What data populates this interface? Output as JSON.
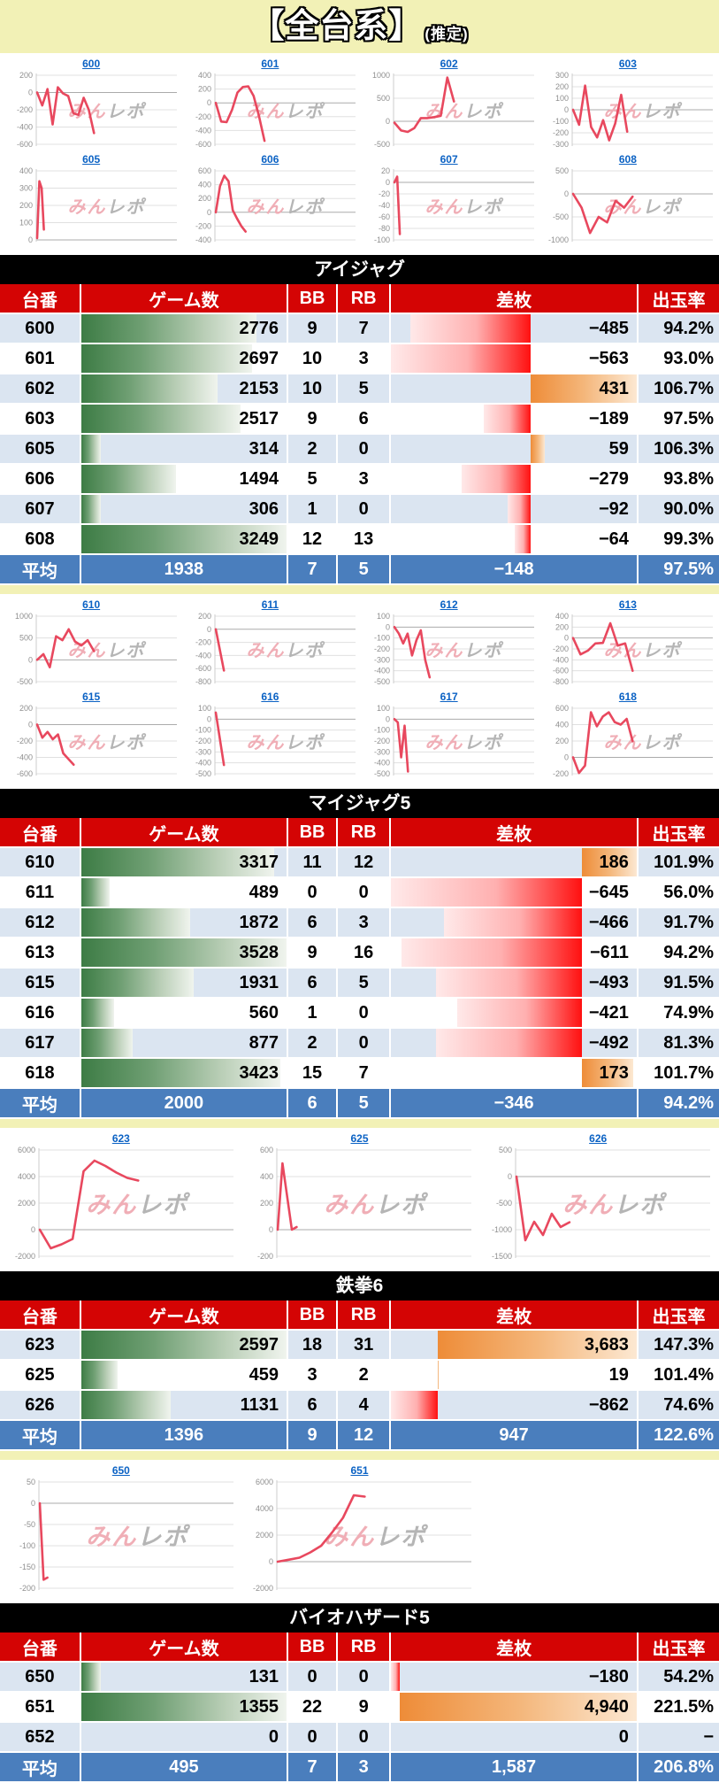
{
  "page": {
    "title": "【全台系】",
    "subtitle": "(推定)"
  },
  "watermark": {
    "part1": "みん",
    "part2": "レポ"
  },
  "columns": {
    "dai": "台番",
    "games": "ゲーム数",
    "bb": "BB",
    "rb": "RB",
    "diff": "差枚",
    "rate": "出玉率"
  },
  "avg_label": "平均",
  "colors": {
    "page_bg": "#f2f1b6",
    "header_red": "#d40404",
    "row_alt_blue": "#dbe5f1",
    "avg_row_blue": "#4a7ebd",
    "section_bar_black": "#000000",
    "chart_line_pink": "#e8485e",
    "link_blue": "#0b62c4",
    "games_bar_green": "#3d7c45",
    "diff_bar_red": "#ff1010",
    "diff_bar_orange": "#ee8c38"
  },
  "sections": [
    {
      "title": "アイジャグ",
      "grid_cols": 4,
      "charts": [
        {
          "label": "600",
          "yticks": [
            200,
            0,
            -200,
            -400,
            -600
          ],
          "span": 0.42,
          "values": [
            0,
            -150,
            40,
            -370,
            60,
            -10,
            -40,
            -240,
            -260,
            -60,
            -200,
            -470
          ]
        },
        {
          "label": "601",
          "yticks": [
            400,
            200,
            0,
            -200,
            -400,
            -600
          ],
          "span": 0.36,
          "values": [
            0,
            -270,
            -280,
            -100,
            150,
            230,
            240,
            100,
            -200,
            -550
          ]
        },
        {
          "label": "602",
          "yticks": [
            1000,
            500,
            0,
            -500
          ],
          "span": 0.44,
          "values": [
            -30,
            -200,
            -230,
            -150,
            70,
            70,
            90,
            120,
            950,
            430
          ]
        },
        {
          "label": "603",
          "yticks": [
            300,
            200,
            100,
            0,
            -100,
            -200,
            -300
          ],
          "span": 0.4,
          "values": [
            0,
            -130,
            210,
            -150,
            -240,
            -90,
            -265,
            -120,
            130,
            -190
          ]
        },
        {
          "label": "605",
          "yticks": [
            400,
            300,
            200,
            100,
            0
          ],
          "span": 0.05,
          "values": [
            10,
            340,
            300,
            60
          ]
        },
        {
          "label": "606",
          "yticks": [
            600,
            400,
            200,
            0,
            -200,
            -400
          ],
          "span": 0.22,
          "values": [
            0,
            380,
            530,
            450,
            30,
            -90,
            -200,
            -280
          ]
        },
        {
          "label": "607",
          "yticks": [
            20,
            0,
            -20,
            -40,
            -60,
            -80,
            -100
          ],
          "span": 0.04,
          "values": [
            0,
            10,
            -90
          ]
        },
        {
          "label": "608",
          "yticks": [
            500,
            0,
            -500,
            -1000
          ],
          "span": 0.44,
          "values": [
            0,
            -300,
            -850,
            -500,
            -620,
            -150,
            -300,
            -60
          ]
        }
      ],
      "rows": [
        {
          "dai": "600",
          "games": "2776",
          "g": 2776,
          "bb": "9",
          "rb": "7",
          "diff_label": "−485",
          "d": -485,
          "rate": "94.2%"
        },
        {
          "dai": "601",
          "games": "2697",
          "g": 2697,
          "bb": "10",
          "rb": "3",
          "diff_label": "−563",
          "d": -563,
          "rate": "93.0%"
        },
        {
          "dai": "602",
          "games": "2153",
          "g": 2153,
          "bb": "10",
          "rb": "5",
          "diff_label": "431",
          "d": 431,
          "rate": "106.7%"
        },
        {
          "dai": "603",
          "games": "2517",
          "g": 2517,
          "bb": "9",
          "rb": "6",
          "diff_label": "−189",
          "d": -189,
          "rate": "97.5%"
        },
        {
          "dai": "605",
          "games": "314",
          "g": 314,
          "bb": "2",
          "rb": "0",
          "diff_label": "59",
          "d": 59,
          "rate": "106.3%"
        },
        {
          "dai": "606",
          "games": "1494",
          "g": 1494,
          "bb": "5",
          "rb": "3",
          "diff_label": "−279",
          "d": -279,
          "rate": "93.8%"
        },
        {
          "dai": "607",
          "games": "306",
          "g": 306,
          "bb": "1",
          "rb": "0",
          "diff_label": "−92",
          "d": -92,
          "rate": "90.0%"
        },
        {
          "dai": "608",
          "games": "3249",
          "g": 3249,
          "bb": "12",
          "rb": "13",
          "diff_label": "−64",
          "d": -64,
          "rate": "99.3%"
        }
      ],
      "avg": {
        "games": "1938",
        "bb": "7",
        "rb": "5",
        "diff_label": "−148",
        "rate": "97.5%"
      }
    },
    {
      "title": "マイジャグ5",
      "grid_cols": 4,
      "charts": [
        {
          "label": "610",
          "yticks": [
            1000,
            500,
            0,
            -500
          ],
          "span": 0.42,
          "values": [
            0,
            130,
            -170,
            540,
            450,
            700,
            420,
            330,
            450,
            200
          ]
        },
        {
          "label": "611",
          "yticks": [
            200,
            0,
            -200,
            -400,
            -600,
            -800
          ],
          "span": 0.06,
          "values": [
            0,
            -630
          ]
        },
        {
          "label": "612",
          "yticks": [
            100,
            0,
            -100,
            -200,
            -300,
            -400,
            -500
          ],
          "span": 0.26,
          "values": [
            0,
            -60,
            -150,
            -60,
            -260,
            -120,
            -30,
            -300,
            -460
          ]
        },
        {
          "label": "613",
          "yticks": [
            400,
            200,
            0,
            -200,
            -400,
            -600,
            -800
          ],
          "span": 0.44,
          "values": [
            0,
            -300,
            -230,
            -100,
            -90,
            270,
            -140,
            -100,
            -600
          ]
        },
        {
          "label": "615",
          "yticks": [
            200,
            0,
            -200,
            -400,
            -600
          ],
          "span": 0.27,
          "values": [
            0,
            -160,
            -90,
            -180,
            -120,
            -350,
            -420,
            -490
          ]
        },
        {
          "label": "616",
          "yticks": [
            100,
            0,
            -100,
            -200,
            -300,
            -400,
            -500
          ],
          "span": 0.06,
          "values": [
            60,
            -420
          ]
        },
        {
          "label": "617",
          "yticks": [
            100,
            0,
            -100,
            -200,
            -300,
            -400,
            -500
          ],
          "span": 0.1,
          "values": [
            0,
            -30,
            -350,
            -60,
            -480
          ]
        },
        {
          "label": "618",
          "yticks": [
            600,
            400,
            200,
            0,
            -200
          ],
          "span": 0.44,
          "values": [
            0,
            -190,
            -100,
            550,
            380,
            500,
            550,
            430,
            400,
            470,
            200
          ]
        }
      ],
      "rows": [
        {
          "dai": "610",
          "games": "3317",
          "g": 3317,
          "bb": "11",
          "rb": "12",
          "diff_label": "186",
          "d": 186,
          "rate": "101.9%"
        },
        {
          "dai": "611",
          "games": "489",
          "g": 489,
          "bb": "0",
          "rb": "0",
          "diff_label": "−645",
          "d": -645,
          "rate": "56.0%"
        },
        {
          "dai": "612",
          "games": "1872",
          "g": 1872,
          "bb": "6",
          "rb": "3",
          "diff_label": "−466",
          "d": -466,
          "rate": "91.7%"
        },
        {
          "dai": "613",
          "games": "3528",
          "g": 3528,
          "bb": "9",
          "rb": "16",
          "diff_label": "−611",
          "d": -611,
          "rate": "94.2%"
        },
        {
          "dai": "615",
          "games": "1931",
          "g": 1931,
          "bb": "6",
          "rb": "5",
          "diff_label": "−493",
          "d": -493,
          "rate": "91.5%"
        },
        {
          "dai": "616",
          "games": "560",
          "g": 560,
          "bb": "1",
          "rb": "0",
          "diff_label": "−421",
          "d": -421,
          "rate": "74.9%"
        },
        {
          "dai": "617",
          "games": "877",
          "g": 877,
          "bb": "2",
          "rb": "0",
          "diff_label": "−492",
          "d": -492,
          "rate": "81.3%"
        },
        {
          "dai": "618",
          "games": "3423",
          "g": 3423,
          "bb": "15",
          "rb": "7",
          "diff_label": "173",
          "d": 173,
          "rate": "101.7%"
        }
      ],
      "avg": {
        "games": "2000",
        "bb": "6",
        "rb": "5",
        "diff_label": "−346",
        "rate": "94.2%"
      }
    },
    {
      "title": "鉄拳6",
      "grid_cols": 3,
      "charts": [
        {
          "label": "623",
          "yticks": [
            6000,
            4000,
            2000,
            0,
            -2000
          ],
          "span": 0.52,
          "values": [
            0,
            -1400,
            -1100,
            -700,
            4400,
            5200,
            4800,
            4300,
            3900,
            3700
          ]
        },
        {
          "label": "625",
          "yticks": [
            600,
            400,
            200,
            0,
            -200
          ],
          "span": 0.1,
          "values": [
            0,
            500,
            250,
            0,
            20
          ]
        },
        {
          "label": "626",
          "yticks": [
            500,
            0,
            -500,
            -1000,
            -1500
          ],
          "span": 0.28,
          "values": [
            0,
            -1200,
            -850,
            -1100,
            -700,
            -950,
            -860
          ]
        }
      ],
      "rows": [
        {
          "dai": "623",
          "games": "2597",
          "g": 2597,
          "bb": "18",
          "rb": "31",
          "diff_label": "3,683",
          "d": 3683,
          "rate": "147.3%"
        },
        {
          "dai": "625",
          "games": "459",
          "g": 459,
          "bb": "3",
          "rb": "2",
          "diff_label": "19",
          "d": 19,
          "rate": "101.4%"
        },
        {
          "dai": "626",
          "games": "1131",
          "g": 1131,
          "bb": "6",
          "rb": "4",
          "diff_label": "−862",
          "d": -862,
          "rate": "74.6%"
        }
      ],
      "avg": {
        "games": "1396",
        "bb": "9",
        "rb": "12",
        "diff_label": "947",
        "rate": "122.6%"
      }
    },
    {
      "title": "バイオハザード5",
      "grid_cols": 3,
      "charts": [
        {
          "label": "650",
          "yticks": [
            50,
            0,
            -50,
            -100,
            -150,
            -200
          ],
          "span": 0.04,
          "values": [
            0,
            -180,
            -175
          ]
        },
        {
          "label": "651",
          "yticks": [
            6000,
            4000,
            2000,
            0,
            -2000
          ],
          "span": 0.46,
          "values": [
            0,
            150,
            300,
            700,
            1200,
            2200,
            3300,
            5000,
            4900
          ]
        }
      ],
      "rows": [
        {
          "dai": "650",
          "games": "131",
          "g": 131,
          "bb": "0",
          "rb": "0",
          "diff_label": "−180",
          "d": -180,
          "rate": "54.2%"
        },
        {
          "dai": "651",
          "games": "1355",
          "g": 1355,
          "bb": "22",
          "rb": "9",
          "diff_label": "4,940",
          "d": 4940,
          "rate": "221.5%"
        },
        {
          "dai": "652",
          "games": "0",
          "g": 0,
          "bb": "0",
          "rb": "0",
          "diff_label": "0",
          "d": 0,
          "rate": "−"
        }
      ],
      "avg": {
        "games": "495",
        "bb": "7",
        "rb": "3",
        "diff_label": "1,587",
        "rate": "206.8%"
      }
    }
  ]
}
